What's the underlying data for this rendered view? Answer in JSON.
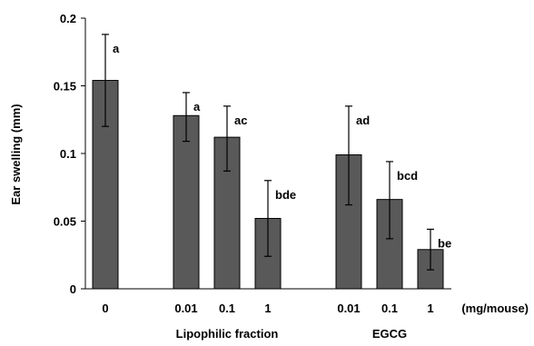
{
  "chart_data": {
    "type": "bar",
    "title": "",
    "ylabel": "Ear swelling (mm)",
    "xlabel": "",
    "unit_label": "(mg/mouse)",
    "ylim": [
      0,
      0.2
    ],
    "yticks": [
      0,
      0.05,
      0.1,
      0.15,
      0.2
    ],
    "ytick_labels": [
      "0",
      "0.05",
      "0.1",
      "0.15",
      "0.2"
    ],
    "grid": false,
    "bar_color": "#595959",
    "categories": [
      "0",
      "0.01",
      "0.1",
      "1",
      "0.01",
      "0.1",
      "1"
    ],
    "values": [
      0.154,
      0.128,
      0.112,
      0.052,
      0.099,
      0.066,
      0.029
    ],
    "error_high": [
      0.188,
      0.145,
      0.135,
      0.08,
      0.135,
      0.094,
      0.044
    ],
    "error_low": [
      0.12,
      0.109,
      0.087,
      0.024,
      0.062,
      0.037,
      0.014
    ],
    "significance": [
      "a",
      "a",
      "ac",
      "bde",
      "ad",
      "bcd",
      "be"
    ],
    "groups": [
      {
        "label": "",
        "bars": [
          0
        ]
      },
      {
        "label": "Lipophilic fraction",
        "bars": [
          1,
          2,
          3
        ]
      },
      {
        "label": "EGCG",
        "bars": [
          4,
          5,
          6
        ]
      }
    ]
  }
}
